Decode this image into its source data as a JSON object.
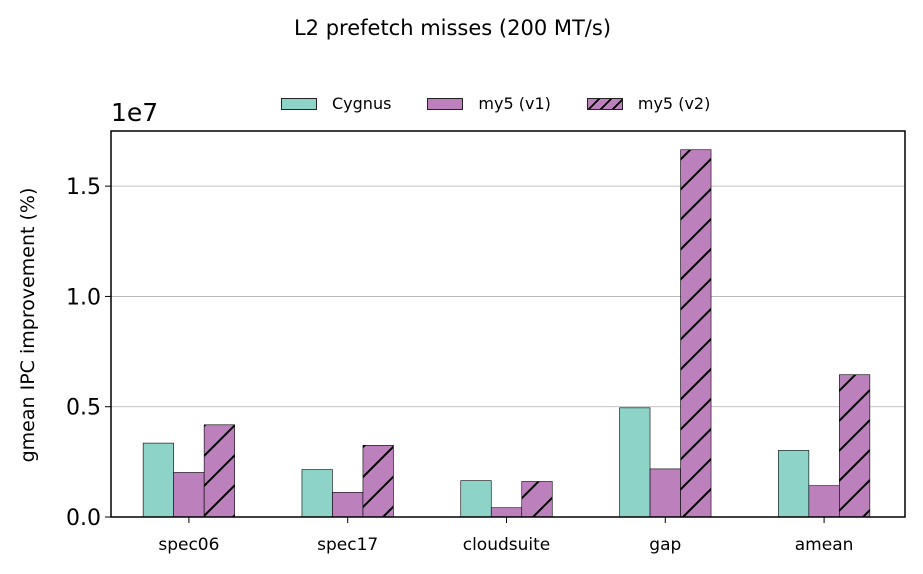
{
  "title": "L2 prefetch misses (200 MT/s)",
  "chart_data": {
    "type": "bar",
    "title": "L2 prefetch misses (200 MT/s)",
    "xlabel": "",
    "ylabel": "gmean IPC improvement (%)",
    "y_offset_label": "1e7",
    "categories": [
      "spec06",
      "spec17",
      "cloudsuite",
      "gap",
      "amean"
    ],
    "ylim": [
      0,
      17500000
    ],
    "yticks": [
      0,
      5000000,
      10000000,
      15000000
    ],
    "ytick_labels": [
      "0.0",
      "0.5",
      "1.0",
      "1.5"
    ],
    "grid": "horizontal",
    "legend_position": "top-center",
    "series": [
      {
        "name": "Cygnus",
        "color": "#8dd3c7",
        "hatch": false,
        "values": [
          3350000,
          2150000,
          1650000,
          4950000,
          3020000
        ]
      },
      {
        "name": "my5 (v1)",
        "color": "#bc80bd",
        "hatch": false,
        "values": [
          2020000,
          1120000,
          420000,
          2180000,
          1420000
        ]
      },
      {
        "name": "my5 (v2)",
        "color": "#bc80bd",
        "hatch": true,
        "values": [
          4180000,
          3250000,
          1610000,
          16650000,
          6450000
        ]
      }
    ]
  }
}
